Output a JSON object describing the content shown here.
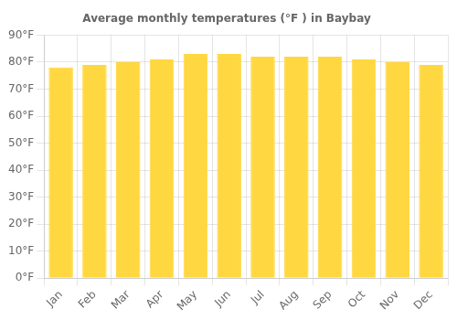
{
  "chart_data": {
    "type": "bar",
    "title": "Average monthly temperatures (°F ) in Baybay",
    "categories": [
      "Jan",
      "Feb",
      "Mar",
      "Apr",
      "May",
      "Jun",
      "Jul",
      "Aug",
      "Sep",
      "Oct",
      "Nov",
      "Dec"
    ],
    "values": [
      78,
      79,
      80,
      81,
      83,
      83,
      82,
      82,
      82,
      81,
      80,
      79
    ],
    "color": "#FFD740",
    "ylim": [
      0,
      90
    ],
    "yticks": [
      {
        "value": 0,
        "label": "0°F"
      },
      {
        "value": 10,
        "label": "10°F"
      },
      {
        "value": 20,
        "label": "20°F"
      },
      {
        "value": 30,
        "label": "30°F"
      },
      {
        "value": 40,
        "label": "40°F"
      },
      {
        "value": 50,
        "label": "50°F"
      },
      {
        "value": 60,
        "label": "60°F"
      },
      {
        "value": 70,
        "label": "70°F"
      },
      {
        "value": 80,
        "label": "80°F"
      },
      {
        "value": 90,
        "label": "90°F"
      }
    ],
    "grid": true
  }
}
